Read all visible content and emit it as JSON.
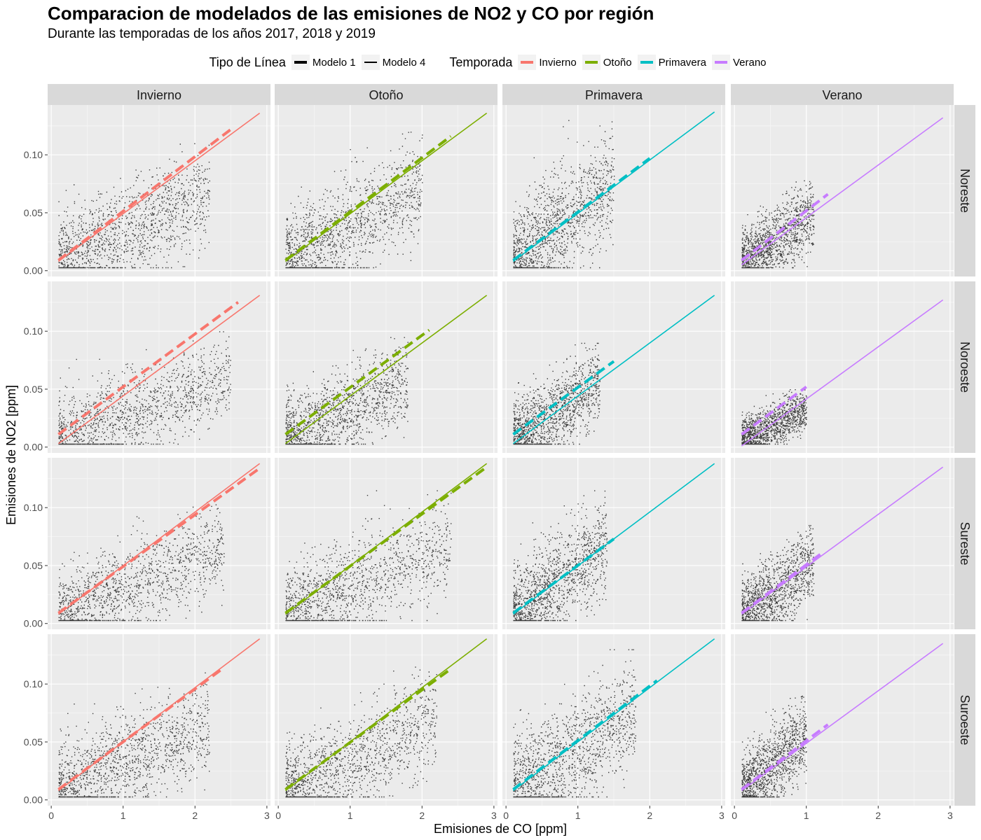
{
  "title": "Comparacion de modelados de las emisiones de NO2 y CO por región",
  "subtitle": "Durante las temporadas de los años 2017, 2018 y 2019",
  "legend": {
    "linetype_title": "Tipo de Línea",
    "linetype_items": [
      {
        "label": "Modelo 1",
        "style": "thick"
      },
      {
        "label": "Modelo 4",
        "style": "thin"
      }
    ],
    "season_title": "Temporada",
    "season_items": [
      {
        "label": "Invierno",
        "color": "#F8766D"
      },
      {
        "label": "Otoño",
        "color": "#7CAE00"
      },
      {
        "label": "Primavera",
        "color": "#00BFC4"
      },
      {
        "label": "Verano",
        "color": "#C77CFF"
      }
    ]
  },
  "chart_data": {
    "type": "scatter",
    "xlabel": "Emisiones de CO [ppm]",
    "ylabel": "Emisiones de NO2 [ppm]",
    "xlim": [
      -0.05,
      3.05
    ],
    "ylim": [
      -0.005,
      0.143
    ],
    "x_ticks": [
      0,
      1,
      2,
      3
    ],
    "x_tick_labels": [
      "0",
      "1",
      "2",
      "3"
    ],
    "y_ticks": [
      0.0,
      0.05,
      0.1
    ],
    "y_tick_labels": [
      "0.00",
      "0.05",
      "0.10"
    ],
    "columns": [
      {
        "label": "Invierno",
        "color": "#F8766D"
      },
      {
        "label": "Otoño",
        "color": "#7CAE00"
      },
      {
        "label": "Primavera",
        "color": "#00BFC4"
      },
      {
        "label": "Verano",
        "color": "#C77CFF"
      }
    ],
    "rows": [
      "Noreste",
      "Noroeste",
      "Sureste",
      "Suroeste"
    ],
    "panels": [
      [
        {
          "modelo1": {
            "x": [
              0.1,
              2.5
            ],
            "y": [
              0.009,
              0.122
            ]
          },
          "modelo4": {
            "x": [
              0.1,
              2.9
            ],
            "y": [
              0.008,
              0.136
            ]
          },
          "cloud": {
            "xmax": 2.2,
            "ymax": 0.11
          }
        },
        {
          "modelo1": {
            "x": [
              0.1,
              2.4
            ],
            "y": [
              0.009,
              0.116
            ]
          },
          "modelo4": {
            "x": [
              0.1,
              2.9
            ],
            "y": [
              0.008,
              0.136
            ]
          },
          "cloud": {
            "xmax": 2.0,
            "ymax": 0.12
          }
        },
        {
          "modelo1": {
            "x": [
              0.1,
              2.0
            ],
            "y": [
              0.009,
              0.097
            ]
          },
          "modelo4": {
            "x": [
              0.1,
              2.9
            ],
            "y": [
              0.008,
              0.137
            ]
          },
          "cloud": {
            "xmax": 1.5,
            "ymax": 0.13
          }
        },
        {
          "modelo1": {
            "x": [
              0.1,
              1.3
            ],
            "y": [
              0.009,
              0.066
            ]
          },
          "modelo4": {
            "x": [
              0.1,
              2.9
            ],
            "y": [
              0.005,
              0.132
            ]
          },
          "cloud": {
            "xmax": 1.1,
            "ymax": 0.078
          }
        }
      ],
      [
        {
          "modelo1": {
            "x": [
              0.1,
              2.6
            ],
            "y": [
              0.011,
              0.125
            ]
          },
          "modelo4": {
            "x": [
              0.1,
              2.9
            ],
            "y": [
              0.003,
              0.131
            ]
          },
          "cloud": {
            "xmax": 2.5,
            "ymax": 0.1
          }
        },
        {
          "modelo1": {
            "x": [
              0.1,
              2.1
            ],
            "y": [
              0.011,
              0.101
            ]
          },
          "modelo4": {
            "x": [
              0.1,
              2.9
            ],
            "y": [
              0.003,
              0.131
            ]
          },
          "cloud": {
            "xmax": 1.8,
            "ymax": 0.095
          }
        },
        {
          "modelo1": {
            "x": [
              0.1,
              1.5
            ],
            "y": [
              0.011,
              0.074
            ]
          },
          "modelo4": {
            "x": [
              0.1,
              2.9
            ],
            "y": [
              0.003,
              0.131
            ]
          },
          "cloud": {
            "xmax": 1.3,
            "ymax": 0.09
          }
        },
        {
          "modelo1": {
            "x": [
              0.1,
              1.0
            ],
            "y": [
              0.011,
              0.052
            ]
          },
          "modelo4": {
            "x": [
              0.1,
              2.9
            ],
            "y": [
              0.001,
              0.127
            ]
          },
          "cloud": {
            "xmax": 1.0,
            "ymax": 0.05
          }
        }
      ],
      [
        {
          "modelo1": {
            "x": [
              0.1,
              2.9
            ],
            "y": [
              0.009,
              0.134
            ]
          },
          "modelo4": {
            "x": [
              0.1,
              2.9
            ],
            "y": [
              0.008,
              0.138
            ]
          },
          "cloud": {
            "xmax": 2.4,
            "ymax": 0.105
          }
        },
        {
          "modelo1": {
            "x": [
              0.1,
              2.9
            ],
            "y": [
              0.009,
              0.135
            ]
          },
          "modelo4": {
            "x": [
              0.1,
              2.9
            ],
            "y": [
              0.008,
              0.138
            ]
          },
          "cloud": {
            "xmax": 2.4,
            "ymax": 0.115
          }
        },
        {
          "modelo1": {
            "x": [
              0.1,
              1.5
            ],
            "y": [
              0.009,
              0.073
            ]
          },
          "modelo4": {
            "x": [
              0.1,
              2.9
            ],
            "y": [
              0.008,
              0.138
            ]
          },
          "cloud": {
            "xmax": 1.4,
            "ymax": 0.115
          }
        },
        {
          "modelo1": {
            "x": [
              0.1,
              1.2
            ],
            "y": [
              0.009,
              0.06
            ]
          },
          "modelo4": {
            "x": [
              0.1,
              2.9
            ],
            "y": [
              0.008,
              0.135
            ]
          },
          "cloud": {
            "xmax": 1.1,
            "ymax": 0.085
          }
        }
      ],
      [
        {
          "modelo1": {
            "x": [
              0.1,
              2.4
            ],
            "y": [
              0.009,
              0.114
            ]
          },
          "modelo4": {
            "x": [
              0.1,
              2.9
            ],
            "y": [
              0.008,
              0.139
            ]
          },
          "cloud": {
            "xmax": 2.2,
            "ymax": 0.11
          }
        },
        {
          "modelo1": {
            "x": [
              0.1,
              2.4
            ],
            "y": [
              0.009,
              0.113
            ]
          },
          "modelo4": {
            "x": [
              0.1,
              2.9
            ],
            "y": [
              0.008,
              0.139
            ]
          },
          "cloud": {
            "xmax": 2.2,
            "ymax": 0.115
          }
        },
        {
          "modelo1": {
            "x": [
              0.1,
              2.1
            ],
            "y": [
              0.009,
              0.103
            ]
          },
          "modelo4": {
            "x": [
              0.1,
              2.9
            ],
            "y": [
              0.008,
              0.139
            ]
          },
          "cloud": {
            "xmax": 1.8,
            "ymax": 0.13
          }
        },
        {
          "modelo1": {
            "x": [
              0.1,
              1.3
            ],
            "y": [
              0.009,
              0.065
            ]
          },
          "modelo4": {
            "x": [
              0.1,
              2.9
            ],
            "y": [
              0.008,
              0.135
            ]
          },
          "cloud": {
            "xmax": 1.0,
            "ymax": 0.09
          }
        }
      ]
    ],
    "grid": true,
    "legend_position": "top"
  }
}
